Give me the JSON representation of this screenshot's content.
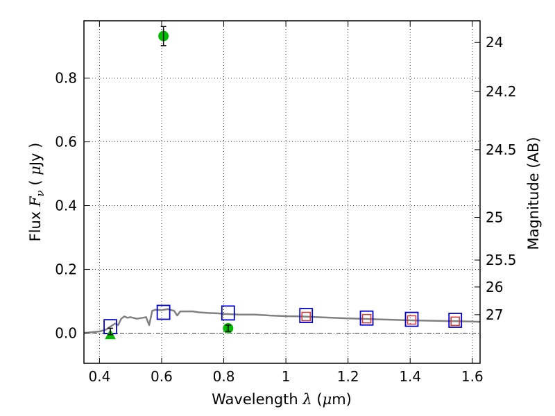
{
  "chart_data": {
    "type": "scatter",
    "xlabel": {
      "pre": "Wavelength  ",
      "sym": "λ",
      "post": " (",
      "mu": "μ",
      "unit": "m)"
    },
    "ylabel": {
      "pre": "Flux  ",
      "sym": "F",
      "sub": "ν",
      "post": "  ( ",
      "mu": "μ",
      "unit": "Jy )"
    },
    "y2label": "Magnitude (AB)",
    "xlim": [
      0.35,
      1.625
    ],
    "ylim": [
      -0.095,
      0.98
    ],
    "grid": true,
    "x_ticks": [
      0.4,
      0.6,
      0.8,
      1.0,
      1.2,
      1.4,
      1.6
    ],
    "x_tick_labels": [
      "0.4",
      "0.6",
      "0.8",
      "1",
      "1.2",
      "1.4",
      "1.6"
    ],
    "y_ticks": [
      0.0,
      0.2,
      0.4,
      0.6,
      0.8
    ],
    "y_tick_labels": [
      "0.0",
      "0.2",
      "0.4",
      "0.6",
      "0.8"
    ],
    "mag_ticks": [
      {
        "mag": 24,
        "label": "24"
      },
      {
        "mag": 24.2,
        "label": "24.2"
      },
      {
        "mag": 24.5,
        "label": "24.5"
      },
      {
        "mag": 25,
        "label": "25"
      },
      {
        "mag": 25.5,
        "label": "25.5"
      },
      {
        "mag": 26,
        "label": "26"
      },
      {
        "mag": 27,
        "label": "27"
      }
    ],
    "colors": {
      "sed": "#808080",
      "observed": "#00bb00",
      "model_blue": "#0000cc",
      "model_red": "#dd3333",
      "zero_line": "#000000"
    },
    "series": [
      {
        "kind": "sed_model_line",
        "points": [
          [
            0.35,
            0.0
          ],
          [
            0.4,
            0.005
          ],
          [
            0.42,
            0.01
          ],
          [
            0.45,
            0.03
          ],
          [
            0.46,
            0.025
          ],
          [
            0.47,
            0.045
          ],
          [
            0.48,
            0.052
          ],
          [
            0.49,
            0.048
          ],
          [
            0.5,
            0.05
          ],
          [
            0.52,
            0.045
          ],
          [
            0.54,
            0.048
          ],
          [
            0.55,
            0.05
          ],
          [
            0.56,
            0.025
          ],
          [
            0.57,
            0.07
          ],
          [
            0.58,
            0.073
          ],
          [
            0.6,
            0.072
          ],
          [
            0.62,
            0.075
          ],
          [
            0.64,
            0.07
          ],
          [
            0.65,
            0.055
          ],
          [
            0.66,
            0.068
          ],
          [
            0.7,
            0.068
          ],
          [
            0.72,
            0.065
          ],
          [
            0.75,
            0.063
          ],
          [
            0.78,
            0.062
          ],
          [
            0.8,
            0.06
          ],
          [
            0.85,
            0.058
          ],
          [
            0.9,
            0.058
          ],
          [
            0.95,
            0.055
          ],
          [
            1.0,
            0.053
          ],
          [
            1.05,
            0.052
          ],
          [
            1.1,
            0.05
          ],
          [
            1.2,
            0.046
          ],
          [
            1.3,
            0.043
          ],
          [
            1.4,
            0.04
          ],
          [
            1.5,
            0.038
          ],
          [
            1.6,
            0.036
          ],
          [
            1.625,
            0.035
          ]
        ]
      },
      {
        "kind": "observed_detection",
        "points": [
          {
            "x": 0.606,
            "y": 0.932,
            "err": 0.03
          },
          {
            "x": 0.814,
            "y": 0.015,
            "err": 0.01
          }
        ]
      },
      {
        "kind": "observed_upper_limit",
        "points": [
          {
            "x": 0.435,
            "y": -0.005,
            "err": 0.01
          }
        ]
      },
      {
        "kind": "model_bandpass_blue",
        "points": [
          {
            "x": 0.435,
            "y": 0.02
          },
          {
            "x": 0.606,
            "y": 0.065
          },
          {
            "x": 0.814,
            "y": 0.063
          },
          {
            "x": 1.065,
            "y": 0.055
          },
          {
            "x": 1.26,
            "y": 0.047
          },
          {
            "x": 1.405,
            "y": 0.043
          },
          {
            "x": 1.545,
            "y": 0.04
          }
        ]
      },
      {
        "kind": "model_bandpass_red",
        "points": [
          {
            "x": 1.065,
            "y": 0.052
          },
          {
            "x": 1.26,
            "y": 0.045
          },
          {
            "x": 1.405,
            "y": 0.041
          },
          {
            "x": 1.545,
            "y": 0.037
          }
        ]
      }
    ]
  }
}
